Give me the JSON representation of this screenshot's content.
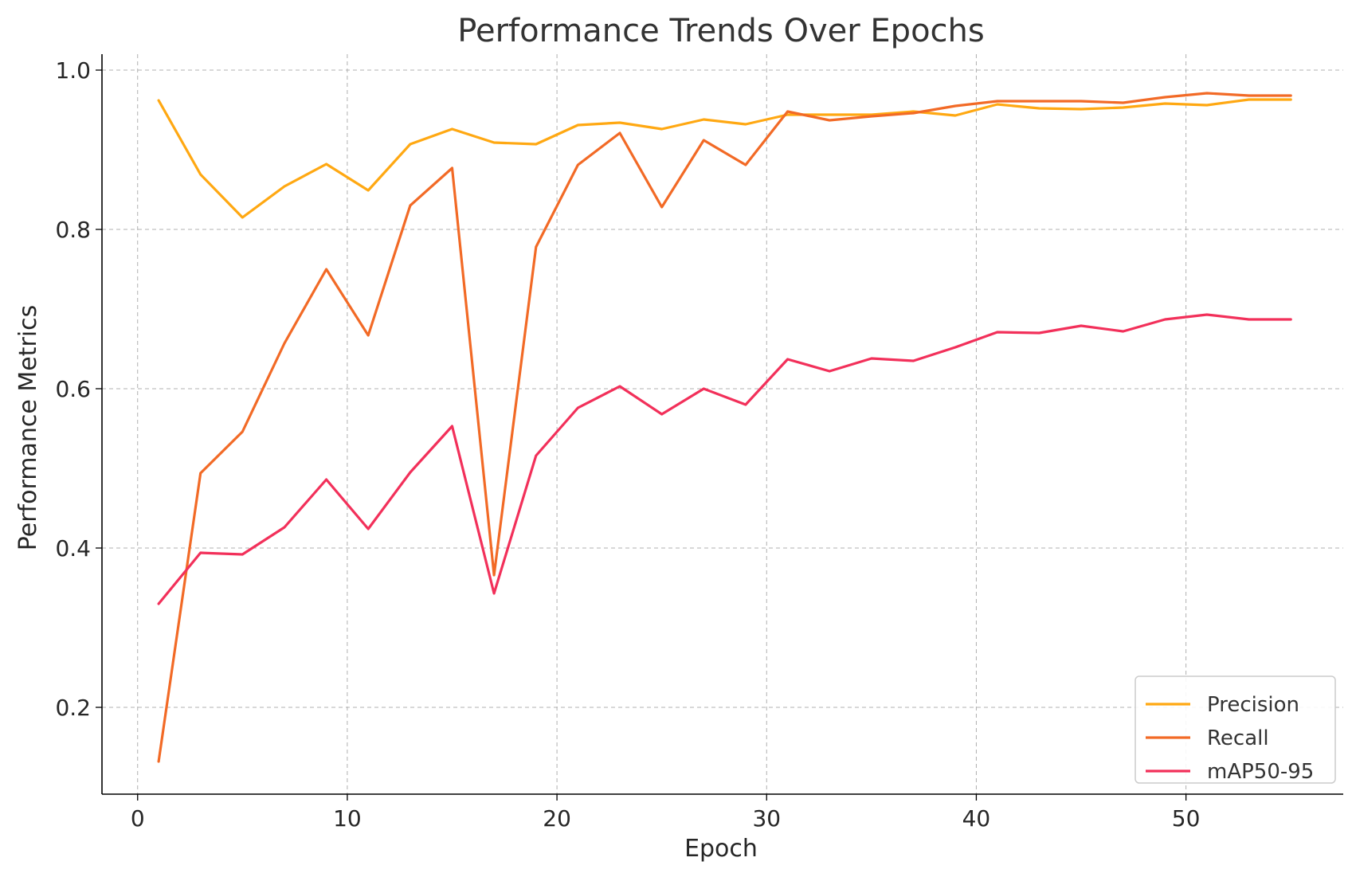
{
  "chart_data": {
    "type": "line",
    "title": "Performance Trends Over Epochs",
    "xlabel": "Epoch",
    "ylabel": "Performance Metrics",
    "xlim": [
      -1.7,
      57.5
    ],
    "ylim": [
      0.091,
      1.02
    ],
    "xticks": [
      0,
      10,
      20,
      30,
      40,
      50
    ],
    "xtick_labels": [
      "0",
      "10",
      "20",
      "30",
      "40",
      "50"
    ],
    "yticks": [
      0.2,
      0.4,
      0.6,
      0.8,
      1.0
    ],
    "ytick_labels": [
      "0.2",
      "0.4",
      "0.6",
      "0.8",
      "1.0"
    ],
    "grid": true,
    "legend_position": "bottom-right",
    "x": [
      1,
      3,
      5,
      7,
      9,
      11,
      13,
      15,
      17,
      19,
      21,
      23,
      25,
      27,
      29,
      31,
      33,
      35,
      37,
      39,
      41,
      43,
      45,
      47,
      49,
      51,
      53,
      55
    ],
    "series": [
      {
        "name": "Precision",
        "color": "#ffa812",
        "values": [
          0.962,
          0.869,
          0.815,
          0.854,
          0.882,
          0.849,
          0.907,
          0.926,
          0.909,
          0.907,
          0.931,
          0.934,
          0.926,
          0.938,
          0.932,
          0.944,
          0.944,
          0.944,
          0.948,
          0.943,
          0.957,
          0.952,
          0.951,
          0.953,
          0.958,
          0.956,
          0.963,
          0.963
        ]
      },
      {
        "name": "Recall",
        "color": "#f26a26",
        "values": [
          0.132,
          0.494,
          0.546,
          0.657,
          0.75,
          0.667,
          0.83,
          0.877,
          0.366,
          0.778,
          0.881,
          0.921,
          0.828,
          0.912,
          0.881,
          0.948,
          0.937,
          0.942,
          0.946,
          0.955,
          0.961,
          0.961,
          0.961,
          0.959,
          0.966,
          0.971,
          0.968,
          0.968
        ]
      },
      {
        "name": "mAP50-95",
        "color": "#f2305a",
        "values": [
          0.33,
          0.394,
          0.392,
          0.426,
          0.486,
          0.424,
          0.495,
          0.553,
          0.343,
          0.516,
          0.576,
          0.603,
          0.568,
          0.6,
          0.58,
          0.637,
          0.622,
          0.638,
          0.635,
          0.652,
          0.671,
          0.67,
          0.679,
          0.672,
          0.687,
          0.693,
          0.687,
          0.687
        ]
      }
    ]
  }
}
